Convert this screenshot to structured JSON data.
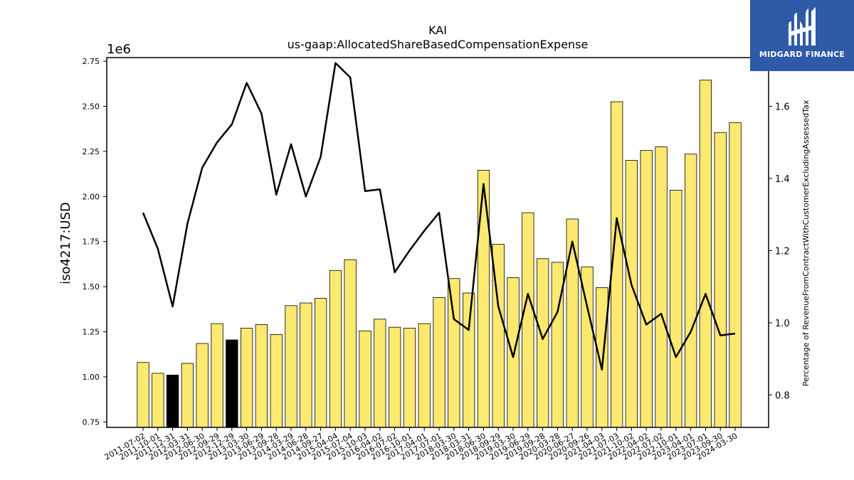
{
  "logo": {
    "text": "MIDGARD FINANCE",
    "background": "#2e5aa8",
    "icon": "midgard-logo-icon"
  },
  "chart_data": {
    "type": "bar",
    "title": "KAI",
    "subtitle": "us-gaap:AllocatedShareBasedCompensationExpense",
    "ylabel": "iso4217:USD",
    "y2label": "Percentage of RevenueFromContractWithCustomerExcludingAssessedTax",
    "y_offset_label": "1e6",
    "ylim": [
      0.72,
      2.77
    ],
    "y2lim": [
      0.71,
      1.735
    ],
    "yticks": [
      "0.75",
      "1.00",
      "1.25",
      "1.50",
      "1.75",
      "2.00",
      "2.25",
      "2.50",
      "2.75"
    ],
    "y2ticks": [
      "0.8",
      "1.0",
      "1.2",
      "1.4",
      "1.6"
    ],
    "categories": [
      "2011-07-02",
      "2011-10-01",
      "2011-12-31",
      "2012-03-31",
      "2012-06-30",
      "2012-09-29",
      "2012-12-29",
      "2013-03-30",
      "2013-06-29",
      "2013-09-28",
      "2014-03-29",
      "2014-06-28",
      "2014-09-27",
      "2015-04-04",
      "2015-07-04",
      "2015-10-03",
      "2016-04-02",
      "2016-07-02",
      "2016-10-01",
      "2017-04-01",
      "2017-07-01",
      "2018-03-30",
      "2018-03-31",
      "2018-06-30",
      "2018-09-29",
      "2019-03-30",
      "2019-06-29",
      "2019-09-28",
      "2020-03-28",
      "2020-06-27",
      "2020-09-26",
      "2021-04-03",
      "2021-07-03",
      "2021-10-02",
      "2022-04-02",
      "2022-07-02",
      "2022-10-01",
      "2023-04-01",
      "2023-07-01",
      "2023-09-30",
      "2024-03-30"
    ],
    "series": [
      {
        "type": "bar",
        "axis": "left",
        "values": [
          1.08,
          1.02,
          1.01,
          1.075,
          1.185,
          1.295,
          1.205,
          1.27,
          1.29,
          1.235,
          1.395,
          1.41,
          1.435,
          1.59,
          1.65,
          1.255,
          1.32,
          1.275,
          1.27,
          1.295,
          1.44,
          1.545,
          1.465,
          2.145,
          1.735,
          1.55,
          1.91,
          1.655,
          1.635,
          1.875,
          1.61,
          1.495,
          2.525,
          2.2,
          2.255,
          2.275,
          2.035,
          2.235,
          2.645,
          2.355,
          2.41
        ],
        "colors": [
          "#fde870",
          "#fde870",
          "#000000",
          "#fde870",
          "#fde870",
          "#fde870",
          "#000000",
          "#fde870",
          "#fde870",
          "#fde870",
          "#fde870",
          "#fde870",
          "#fde870",
          "#fde870",
          "#fde870",
          "#fde870",
          "#fde870",
          "#fde870",
          "#fde870",
          "#fde870",
          "#fde870",
          "#fde870",
          "#fde870",
          "#fde870",
          "#fde870",
          "#fde870",
          "#fde870",
          "#fde870",
          "#fde870",
          "#fde870",
          "#fde870",
          "#fde870",
          "#fde870",
          "#fde870",
          "#fde870",
          "#fde870",
          "#fde870",
          "#fde870",
          "#fde870",
          "#fde870",
          "#fde870"
        ]
      },
      {
        "type": "line",
        "axis": "right",
        "color": "#000000",
        "values": [
          1.305,
          1.205,
          1.045,
          1.275,
          1.43,
          1.5,
          1.55,
          1.665,
          1.58,
          1.355,
          1.495,
          1.35,
          1.46,
          1.72,
          1.68,
          1.365,
          1.37,
          1.14,
          1.2,
          1.255,
          1.305,
          1.01,
          0.98,
          1.385,
          1.045,
          0.905,
          1.08,
          0.955,
          1.03,
          1.225,
          1.045,
          0.87,
          1.29,
          1.105,
          0.995,
          1.025,
          0.905,
          0.975,
          1.08,
          0.965,
          0.97
        ]
      }
    ],
    "grid": false
  }
}
